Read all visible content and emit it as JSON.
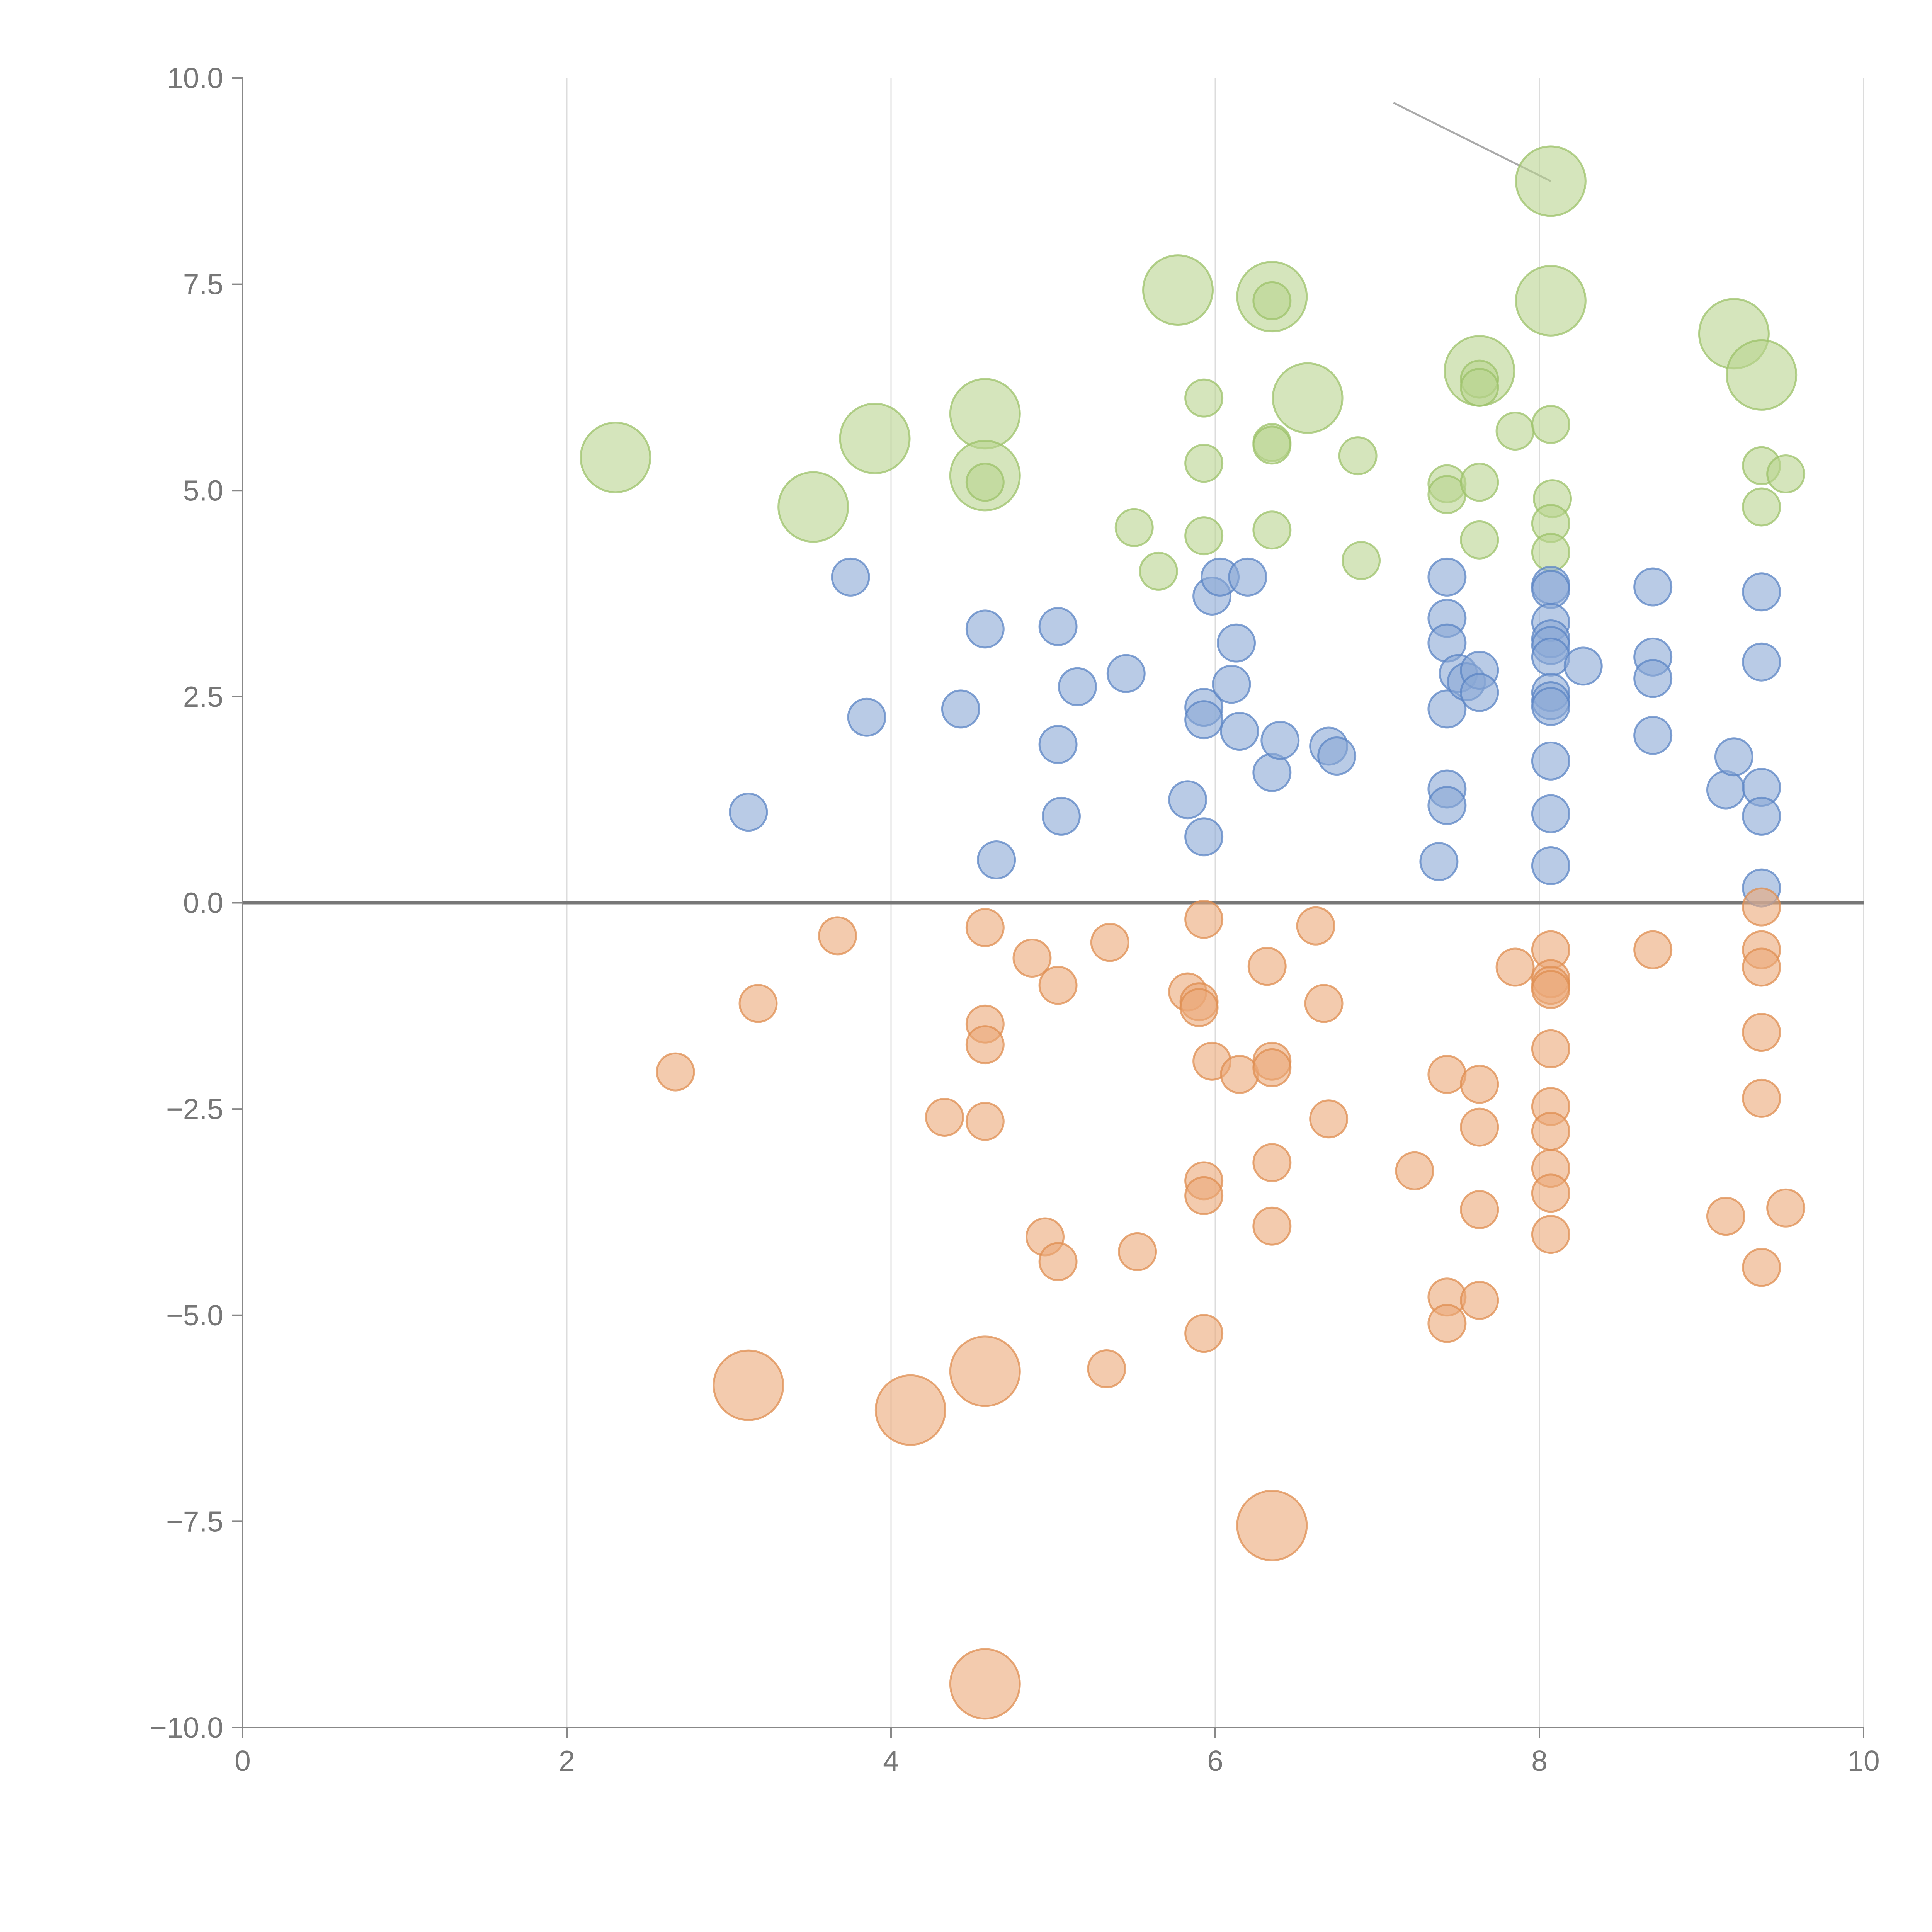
{
  "chart_data": {
    "type": "scatter",
    "xlim": [
      0,
      10
    ],
    "ylim": [
      -10,
      10
    ],
    "x_ticks": [
      "0",
      "2",
      "4",
      "6",
      "8",
      "10"
    ],
    "y_ticks": [
      "10.0",
      "7.5",
      "5.0",
      "2.5",
      "0.0",
      "−2.5",
      "−5.0",
      "−7.5",
      "−10.0"
    ],
    "grid": "vertical lines at x ticks",
    "reference_line": {
      "y": 0
    },
    "colors": {
      "green": "#b9d48f",
      "green_stroke": "#9cc26a",
      "blue": "#8aa8d6",
      "blue_stroke": "#5b84c4",
      "orange": "#eba878",
      "orange_stroke": "#df8d50",
      "leader": "#aaaaaa"
    },
    "series": [
      {
        "color_key": "green",
        "points": [
          [
            2.3,
            5.4,
            2
          ],
          [
            3.52,
            4.8,
            2
          ],
          [
            3.9,
            5.63,
            2
          ],
          [
            4.58,
            5.93,
            2
          ],
          [
            4.58,
            5.18,
            2
          ],
          [
            4.58,
            5.1,
            0
          ],
          [
            5.5,
            4.55,
            0
          ],
          [
            5.65,
            4.02,
            0
          ],
          [
            5.77,
            7.43,
            2
          ],
          [
            5.93,
            6.12,
            0
          ],
          [
            5.93,
            5.33,
            0
          ],
          [
            5.93,
            4.45,
            0
          ],
          [
            6.35,
            7.35,
            2
          ],
          [
            6.35,
            7.3,
            0
          ],
          [
            6.35,
            5.58,
            0
          ],
          [
            6.35,
            5.55,
            0
          ],
          [
            6.35,
            4.52,
            0
          ],
          [
            6.57,
            6.12,
            2
          ],
          [
            6.88,
            5.42,
            0
          ],
          [
            6.9,
            4.15,
            0
          ],
          [
            7.43,
            5.08,
            0
          ],
          [
            7.43,
            4.95,
            0
          ],
          [
            7.63,
            6.45,
            2
          ],
          [
            7.63,
            6.35,
            0
          ],
          [
            7.63,
            6.25,
            0
          ],
          [
            7.63,
            5.1,
            0
          ],
          [
            7.63,
            4.4,
            0
          ],
          [
            7.85,
            5.72,
            0
          ],
          [
            8.07,
            8.75,
            2
          ],
          [
            8.07,
            7.3,
            2
          ],
          [
            8.07,
            5.8,
            0
          ],
          [
            8.08,
            4.9,
            0
          ],
          [
            8.07,
            4.6,
            0
          ],
          [
            8.07,
            4.25,
            0
          ],
          [
            9.2,
            6.9,
            2
          ],
          [
            9.37,
            6.4,
            2
          ],
          [
            9.37,
            5.3,
            0
          ],
          [
            9.52,
            5.2,
            0
          ],
          [
            9.37,
            4.8,
            0
          ]
        ]
      },
      {
        "color_key": "blue",
        "points": [
          [
            3.12,
            1.1,
            0
          ],
          [
            3.75,
            3.95,
            0
          ],
          [
            3.85,
            2.25,
            0
          ],
          [
            4.43,
            2.35,
            0
          ],
          [
            4.58,
            3.32,
            0
          ],
          [
            4.65,
            0.52,
            0
          ],
          [
            5.03,
            3.35,
            0
          ],
          [
            5.03,
            1.92,
            0
          ],
          [
            5.05,
            1.05,
            0
          ],
          [
            5.15,
            2.62,
            0
          ],
          [
            5.45,
            2.78,
            0
          ],
          [
            5.83,
            1.25,
            0
          ],
          [
            5.93,
            2.37,
            0
          ],
          [
            5.93,
            2.22,
            0
          ],
          [
            5.93,
            0.8,
            0
          ],
          [
            5.98,
            3.72,
            0
          ],
          [
            6.03,
            3.95,
            0
          ],
          [
            6.1,
            2.65,
            0
          ],
          [
            6.13,
            3.15,
            0
          ],
          [
            6.15,
            2.08,
            0
          ],
          [
            6.2,
            3.95,
            0
          ],
          [
            6.35,
            1.58,
            0
          ],
          [
            6.4,
            1.97,
            0
          ],
          [
            6.7,
            1.9,
            0
          ],
          [
            6.75,
            1.78,
            0
          ],
          [
            7.38,
            0.5,
            0
          ],
          [
            7.43,
            3.95,
            0
          ],
          [
            7.43,
            3.45,
            0
          ],
          [
            7.43,
            3.15,
            0
          ],
          [
            7.43,
            2.35,
            0
          ],
          [
            7.43,
            1.38,
            0
          ],
          [
            7.43,
            1.18,
            0
          ],
          [
            7.5,
            2.78,
            0
          ],
          [
            7.55,
            2.68,
            0
          ],
          [
            7.63,
            2.82,
            0
          ],
          [
            7.63,
            2.55,
            0
          ],
          [
            8.07,
            3.85,
            0
          ],
          [
            8.07,
            3.8,
            0
          ],
          [
            8.07,
            3.4,
            0
          ],
          [
            8.07,
            3.2,
            0
          ],
          [
            8.07,
            3.12,
            0
          ],
          [
            8.07,
            2.98,
            0
          ],
          [
            8.07,
            2.55,
            0
          ],
          [
            8.07,
            2.45,
            0
          ],
          [
            8.07,
            2.38,
            0
          ],
          [
            8.07,
            1.72,
            0
          ],
          [
            8.07,
            1.08,
            0
          ],
          [
            8.07,
            0.45,
            0
          ],
          [
            8.27,
            2.87,
            0
          ],
          [
            8.7,
            3.83,
            0
          ],
          [
            8.7,
            2.98,
            0
          ],
          [
            8.7,
            2.72,
            0
          ],
          [
            8.7,
            2.03,
            0
          ],
          [
            9.15,
            1.37,
            0
          ],
          [
            9.2,
            1.77,
            0
          ],
          [
            9.37,
            3.77,
            0
          ],
          [
            9.37,
            2.92,
            0
          ],
          [
            9.37,
            1.4,
            0
          ],
          [
            9.37,
            1.05,
            0
          ],
          [
            9.37,
            0.18,
            0
          ]
        ]
      },
      {
        "color_key": "orange",
        "points": [
          [
            2.67,
            -2.05,
            0
          ],
          [
            3.12,
            -5.85,
            2
          ],
          [
            3.18,
            -1.22,
            0
          ],
          [
            3.67,
            -0.4,
            0
          ],
          [
            4.12,
            -6.15,
            2
          ],
          [
            4.33,
            -2.6,
            0
          ],
          [
            4.58,
            -0.3,
            0
          ],
          [
            4.58,
            -1.47,
            0
          ],
          [
            4.58,
            -1.72,
            0
          ],
          [
            4.58,
            -2.65,
            0
          ],
          [
            4.58,
            -5.68,
            2
          ],
          [
            4.58,
            -9.47,
            2
          ],
          [
            4.87,
            -0.67,
            0
          ],
          [
            4.95,
            -4.05,
            0
          ],
          [
            5.03,
            -1.0,
            0
          ],
          [
            5.03,
            -4.35,
            0
          ],
          [
            5.33,
            -5.65,
            0
          ],
          [
            5.35,
            -0.48,
            0
          ],
          [
            5.52,
            -4.23,
            0
          ],
          [
            5.83,
            -1.08,
            0
          ],
          [
            5.9,
            -1.2,
            0
          ],
          [
            5.9,
            -1.27,
            0
          ],
          [
            5.93,
            -0.2,
            0
          ],
          [
            5.93,
            -3.37,
            0
          ],
          [
            5.93,
            -3.55,
            0
          ],
          [
            5.93,
            -5.22,
            0
          ],
          [
            5.98,
            -1.92,
            0
          ],
          [
            6.15,
            -2.08,
            0
          ],
          [
            6.32,
            -0.77,
            0
          ],
          [
            6.35,
            -1.92,
            0
          ],
          [
            6.35,
            -2.0,
            0
          ],
          [
            6.35,
            -3.15,
            0
          ],
          [
            6.35,
            -3.92,
            0
          ],
          [
            6.35,
            -7.55,
            2
          ],
          [
            6.62,
            -0.28,
            0
          ],
          [
            6.67,
            -1.22,
            0
          ],
          [
            6.7,
            -2.62,
            0
          ],
          [
            7.23,
            -3.25,
            0
          ],
          [
            7.43,
            -2.08,
            0
          ],
          [
            7.43,
            -4.78,
            0
          ],
          [
            7.43,
            -5.1,
            0
          ],
          [
            7.63,
            -2.2,
            0
          ],
          [
            7.63,
            -2.72,
            0
          ],
          [
            7.63,
            -3.72,
            0
          ],
          [
            7.63,
            -4.82,
            0
          ],
          [
            7.85,
            -0.78,
            0
          ],
          [
            8.07,
            -0.57,
            0
          ],
          [
            8.07,
            -0.92,
            0
          ],
          [
            8.07,
            -1.0,
            0
          ],
          [
            8.07,
            -1.05,
            0
          ],
          [
            8.07,
            -1.77,
            0
          ],
          [
            8.07,
            -2.47,
            0
          ],
          [
            8.07,
            -2.77,
            0
          ],
          [
            8.07,
            -3.22,
            0
          ],
          [
            8.07,
            -3.52,
            0
          ],
          [
            8.07,
            -4.02,
            0
          ],
          [
            8.7,
            -0.57,
            0
          ],
          [
            9.15,
            -3.8,
            0
          ],
          [
            9.37,
            -0.05,
            0
          ],
          [
            9.37,
            -0.57,
            0
          ],
          [
            9.37,
            -0.78,
            0
          ],
          [
            9.37,
            -1.57,
            0
          ],
          [
            9.37,
            -2.37,
            0
          ],
          [
            9.37,
            -4.42,
            0
          ],
          [
            9.52,
            -3.7,
            0
          ]
        ]
      }
    ],
    "leader_lines": [
      [
        [
          7.1,
          9.7
        ],
        [
          8.07,
          8.75
        ]
      ]
    ]
  }
}
